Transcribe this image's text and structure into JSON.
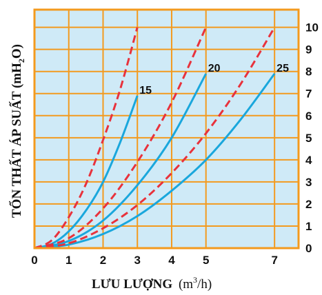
{
  "chart_data": {
    "type": "line",
    "xlabel": "LƯU LƯỢNG",
    "xunit": "(m",
    "xunit_sup": "3",
    "xunit_tail": "/h)",
    "ylabel": "TỔN THẤT ÁP SUẤT (mH",
    "ylabel_sub": "2",
    "ylabel_tail": "O)",
    "xlim": [
      0,
      7.7
    ],
    "ylim": [
      0,
      10.8
    ],
    "x_ticks": [
      0,
      1,
      2,
      3,
      4,
      5,
      7
    ],
    "y_ticks": [
      0,
      1,
      2,
      3,
      4,
      5,
      6,
      7,
      8,
      9,
      10
    ],
    "x_tick_labels": [
      "0",
      "1",
      "2",
      "3",
      "4",
      "5",
      "7"
    ],
    "y_tick_labels": [
      "0",
      "1",
      "2",
      "3",
      "4",
      "5",
      "6",
      "7",
      "8",
      "9",
      "10"
    ],
    "grid": true,
    "series": [
      {
        "name": "15",
        "style": "solid",
        "color": "#1aa7dc",
        "x": [
          0,
          0.5,
          1,
          1.5,
          2,
          2.5,
          3
        ],
        "y": [
          0,
          0.19,
          0.76,
          1.7,
          3.0,
          4.8,
          6.9
        ]
      },
      {
        "name": "20",
        "style": "solid",
        "color": "#1aa7dc",
        "x": [
          0,
          1,
          2,
          3,
          4,
          5
        ],
        "y": [
          0,
          0.32,
          1.25,
          2.85,
          5.0,
          7.9
        ]
      },
      {
        "name": "25",
        "style": "solid",
        "color": "#1aa7dc",
        "x": [
          0,
          1,
          2,
          3,
          4,
          5,
          6,
          7
        ],
        "y": [
          0,
          0.16,
          0.64,
          1.45,
          2.6,
          4.0,
          5.8,
          7.9
        ]
      },
      {
        "style": "dashed",
        "color": "#e8323c",
        "x": [
          0,
          0.5,
          1,
          1.5,
          2,
          2.5,
          3
        ],
        "y": [
          0,
          0.35,
          1.4,
          2.9,
          4.9,
          7.2,
          10.0
        ]
      },
      {
        "style": "dashed",
        "color": "#e8323c",
        "x": [
          0,
          1,
          2,
          3,
          4,
          5
        ],
        "y": [
          0,
          0.45,
          1.8,
          3.9,
          6.6,
          10.0
        ]
      },
      {
        "style": "dashed",
        "color": "#e8323c",
        "x": [
          0,
          1,
          2,
          3,
          4,
          5,
          6,
          7
        ],
        "y": [
          0,
          0.22,
          0.9,
          1.95,
          3.4,
          5.2,
          7.4,
          10.0
        ]
      }
    ]
  }
}
